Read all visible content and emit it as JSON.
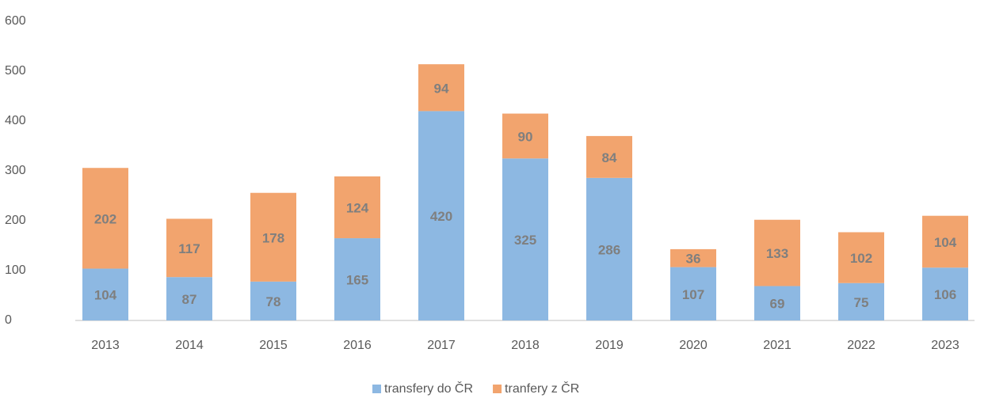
{
  "chart_data": {
    "type": "stacked_bar",
    "categories": [
      "2013",
      "2014",
      "2015",
      "2016",
      "2017",
      "2018",
      "2019",
      "2020",
      "2021",
      "2022",
      "2023"
    ],
    "series": [
      {
        "name": "transfery do ČR",
        "color": "#8db8e2",
        "values": [
          104,
          87,
          78,
          165,
          420,
          325,
          286,
          107,
          69,
          75,
          106
        ]
      },
      {
        "name": "tranfery z ČR",
        "color": "#f2a46e",
        "values": [
          202,
          117,
          178,
          124,
          94,
          90,
          84,
          36,
          133,
          102,
          104
        ]
      }
    ],
    "ylim": [
      0,
      600
    ],
    "yticks": [
      0,
      100,
      200,
      300,
      400,
      500,
      600
    ],
    "grid": false,
    "legend": "bottom"
  }
}
